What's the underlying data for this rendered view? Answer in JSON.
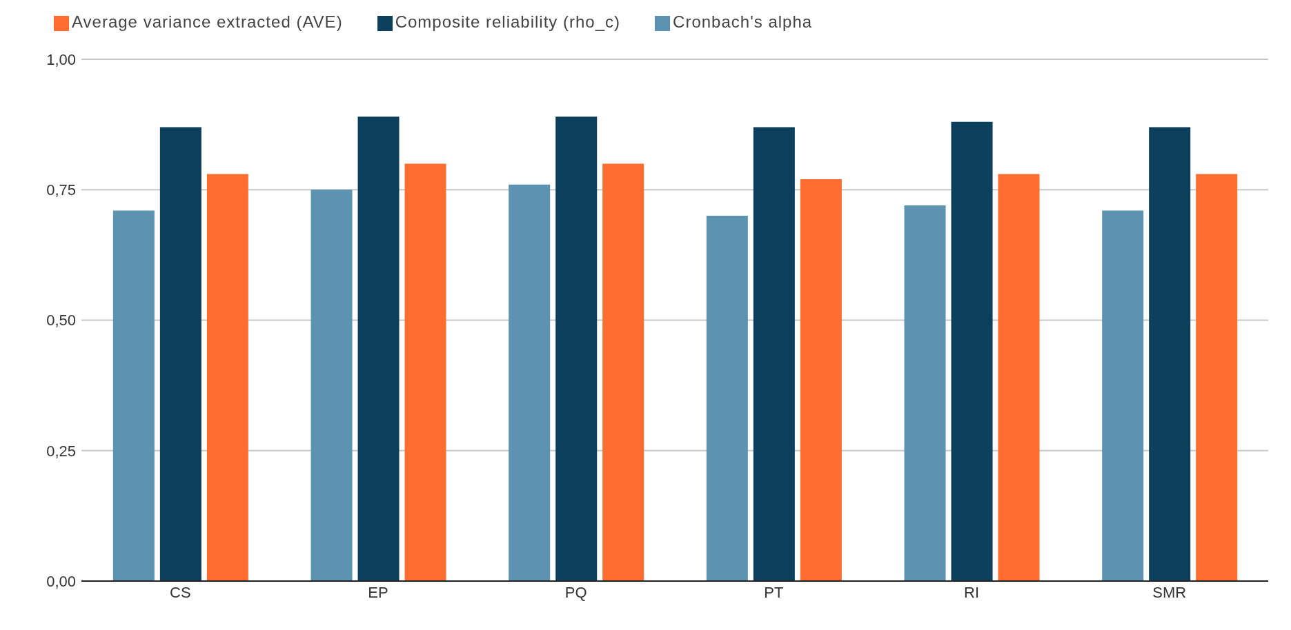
{
  "chart_data": {
    "type": "bar",
    "categories": [
      "CS",
      "EP",
      "PQ",
      "PT",
      "RI",
      "SMR"
    ],
    "series": [
      {
        "name": "Cronbach's alpha",
        "color": "#5b93b1",
        "values": [
          0.71,
          0.75,
          0.76,
          0.7,
          0.72,
          0.71
        ]
      },
      {
        "name": "Composite reliability (rho_c)",
        "color": "#0b3f5c",
        "values": [
          0.87,
          0.89,
          0.89,
          0.87,
          0.88,
          0.87
        ]
      },
      {
        "name": "Average variance extracted (AVE)",
        "color": "#ff6d31",
        "values": [
          0.78,
          0.8,
          0.8,
          0.77,
          0.78,
          0.78
        ]
      }
    ],
    "ylim": [
      0,
      1
    ],
    "yticks": [
      {
        "value": 0,
        "label": "0,00"
      },
      {
        "value": 0.25,
        "label": "0,25"
      },
      {
        "value": 0.5,
        "label": "0,50"
      },
      {
        "value": 0.75,
        "label": "0,75"
      },
      {
        "value": 1,
        "label": "1,00"
      }
    ],
    "grid": "y",
    "legend": "top"
  }
}
